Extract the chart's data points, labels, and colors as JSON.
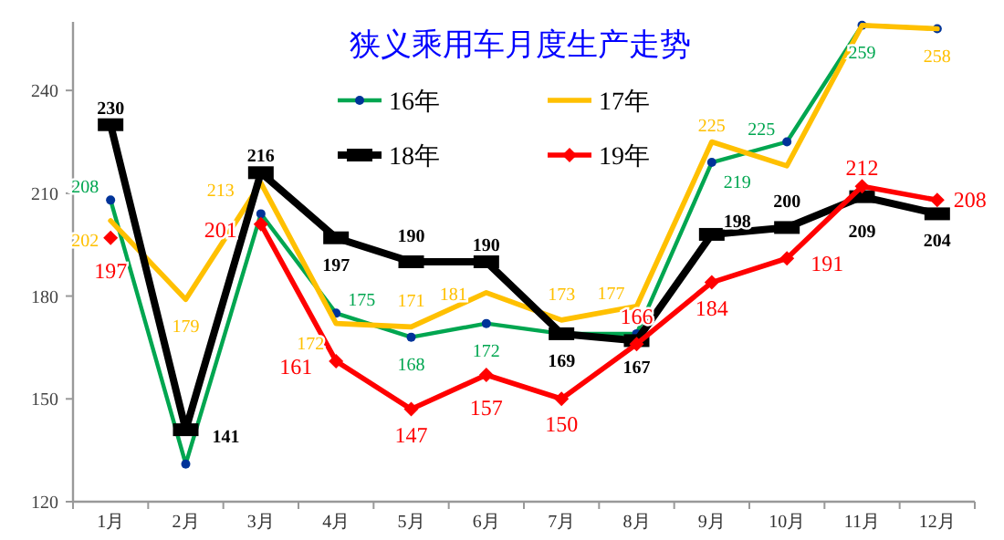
{
  "chart_data": {
    "type": "line",
    "title": "狭义乘用车月度生产走势",
    "categories": [
      "1月",
      "2月",
      "3月",
      "4月",
      "5月",
      "6月",
      "7月",
      "8月",
      "9月",
      "10月",
      "11月",
      "12月"
    ],
    "series": [
      {
        "name": "16年",
        "color": "#00a650",
        "marker": "circle",
        "values": [
          208,
          131,
          204,
          175,
          168,
          172,
          169,
          169,
          219,
          225,
          259,
          258
        ],
        "value_labels": [
          "208",
          null,
          null,
          "175",
          "168",
          "172",
          null,
          null,
          "219",
          "225",
          "259",
          null
        ]
      },
      {
        "name": "17年",
        "color": "#ffc000",
        "marker": "none",
        "values": [
          202,
          179,
          213,
          172,
          171,
          181,
          173,
          177,
          225,
          218,
          259,
          258
        ],
        "value_labels": [
          "202",
          "179",
          "213",
          "172",
          "171",
          "181",
          "173",
          "177",
          "225",
          null,
          null,
          "258"
        ]
      },
      {
        "name": "18年",
        "color": "#000000",
        "marker": "square",
        "values": [
          230,
          141,
          216,
          197,
          190,
          190,
          169,
          167,
          198,
          200,
          209,
          204
        ],
        "value_labels": [
          "230",
          "141",
          "216",
          "197",
          "190",
          "190",
          "169",
          "167",
          "198",
          "200",
          "209",
          "204"
        ]
      },
      {
        "name": "19年",
        "color": "#ff0000",
        "marker": "diamond",
        "values": [
          197,
          null,
          201,
          161,
          147,
          157,
          150,
          166,
          184,
          191,
          212,
          208
        ],
        "value_labels": [
          "197",
          null,
          "201",
          "161",
          "147",
          "157",
          "150",
          "166",
          "184",
          "191",
          "212",
          "208"
        ]
      }
    ],
    "ylim": [
      120,
      260
    ],
    "yticks": [
      120,
      150,
      180,
      210,
      240
    ],
    "grid": false,
    "legend": "top"
  }
}
